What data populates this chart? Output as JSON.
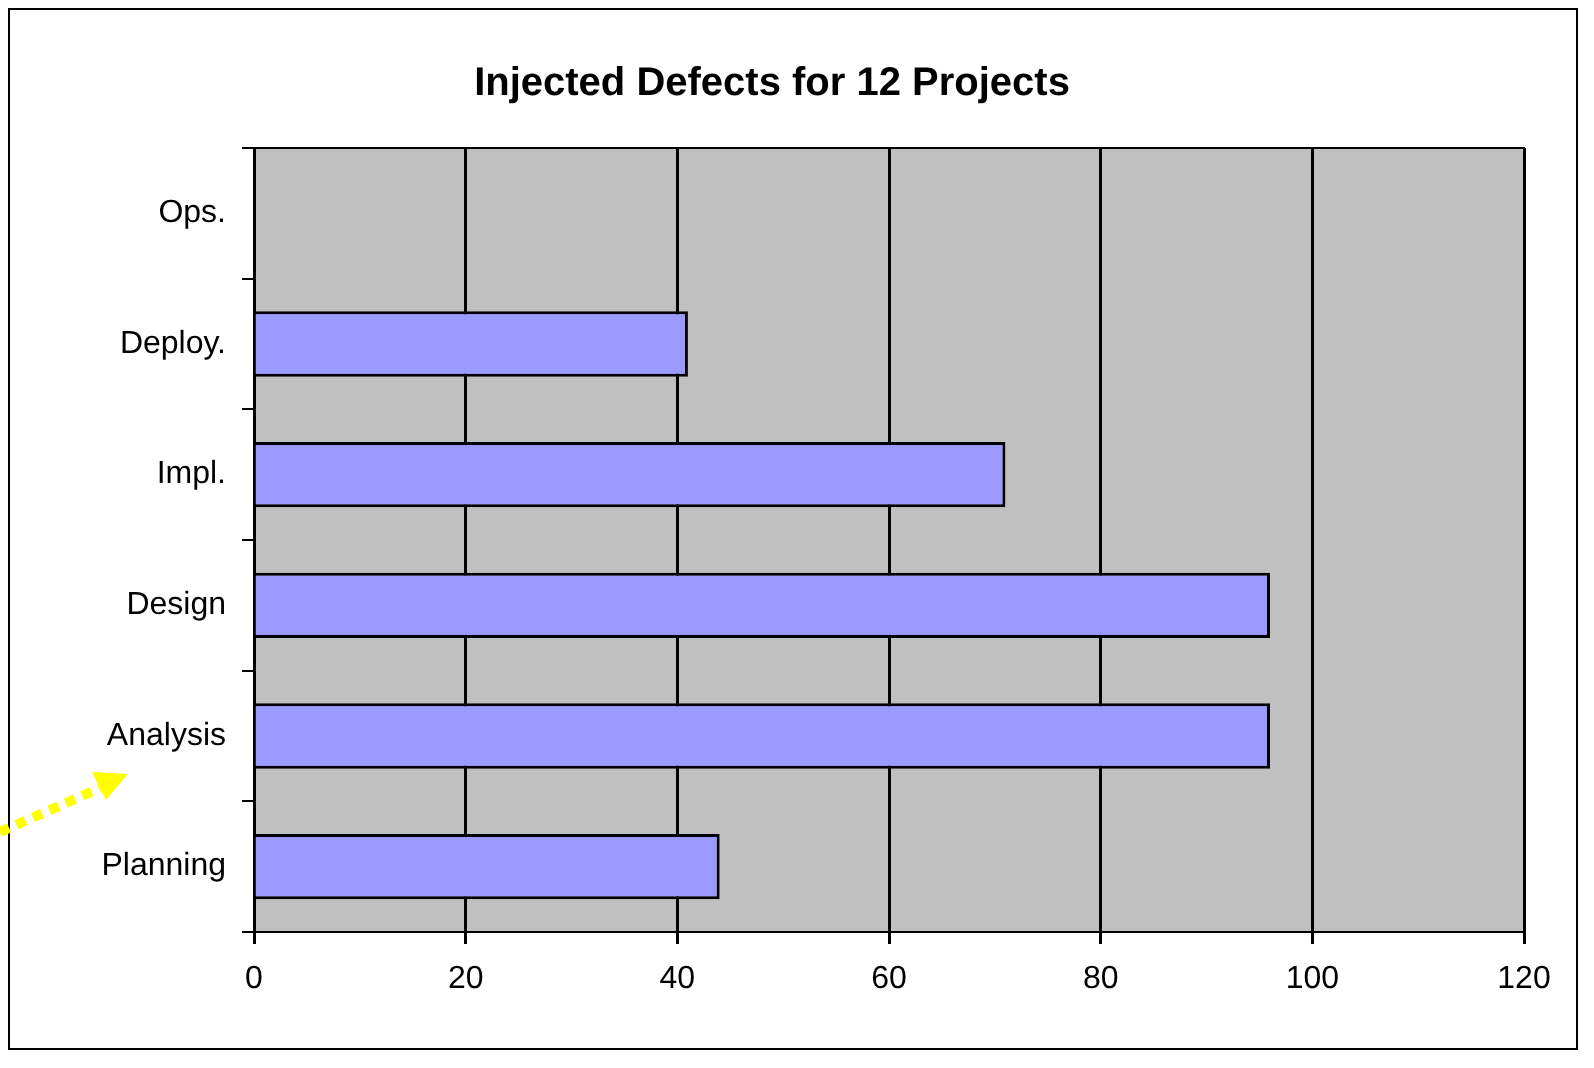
{
  "chart_data": {
    "type": "bar",
    "orientation": "horizontal",
    "title": "Injected Defects for 12 Projects",
    "categories": [
      "Ops.",
      "Deploy.",
      "Impl.",
      "Design",
      "Analysis",
      "Planning"
    ],
    "values": [
      0,
      41,
      71,
      96,
      96,
      44
    ],
    "color": "#9999ff",
    "xlim": [
      0,
      120
    ],
    "xticks": [
      0,
      20,
      40,
      60,
      80,
      100,
      120
    ],
    "grid": "x",
    "legend": false
  }
}
